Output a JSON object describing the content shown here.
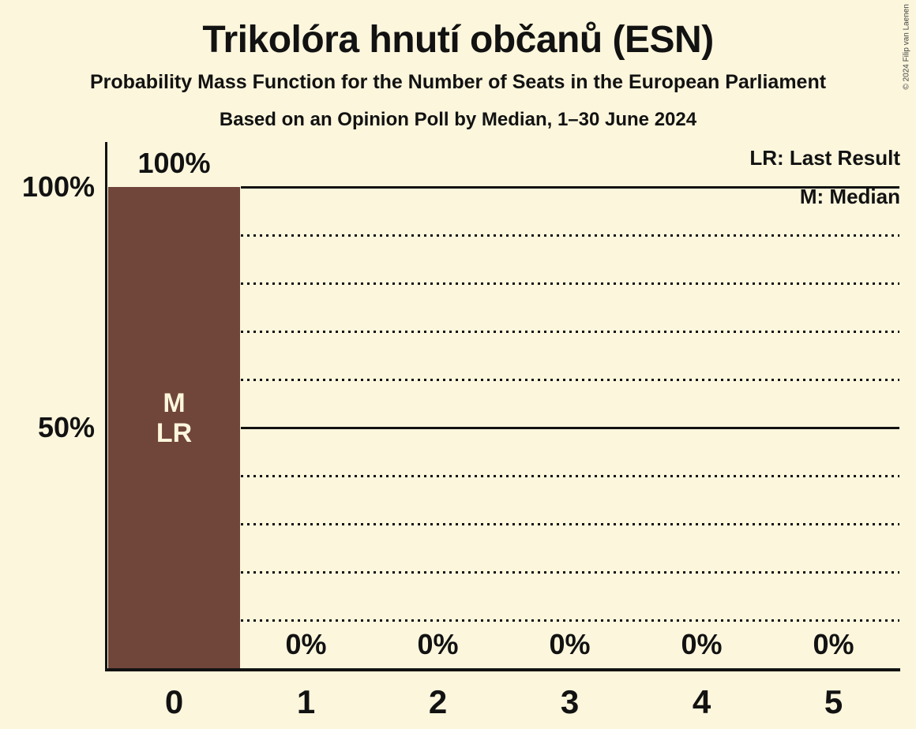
{
  "meta": {
    "copyright": "© 2024 Filip van Laenen"
  },
  "chart_data": {
    "type": "bar",
    "title": "Trikolóra hnutí občanů (ESN)",
    "subtitle": "Probability Mass Function for the Number of Seats in the European Parliament",
    "poll_line": "Based on an Opinion Poll by Median, 1–30 June 2024",
    "xlabel": "",
    "ylabel": "",
    "categories": [
      "0",
      "1",
      "2",
      "3",
      "4",
      "5"
    ],
    "values": [
      100,
      0,
      0,
      0,
      0,
      0
    ],
    "value_labels": [
      "100%",
      "0%",
      "0%",
      "0%",
      "0%",
      "0%"
    ],
    "ylim": [
      0,
      100
    ],
    "ytick_labels": [
      "100%",
      "50%"
    ],
    "yticks_solid": [
      100,
      50
    ],
    "yticks_dotted": [
      90,
      80,
      70,
      60,
      40,
      30,
      20,
      10
    ],
    "grid": "horizontal, dotted every 10%, solid at 50% and 100%, drawn right of the bar",
    "legend_position": "top-right",
    "legend": [
      {
        "abbr": "LR",
        "label": "LR: Last Result"
      },
      {
        "abbr": "M",
        "label": "M: Median"
      }
    ],
    "bar_annotations": [
      {
        "category": "0",
        "lines": [
          "M",
          "LR"
        ]
      }
    ],
    "colors": {
      "bar": "#70453A",
      "background": "#FBF6DC",
      "text": "#121212",
      "bar_label_text": "#FBF6DC"
    }
  }
}
